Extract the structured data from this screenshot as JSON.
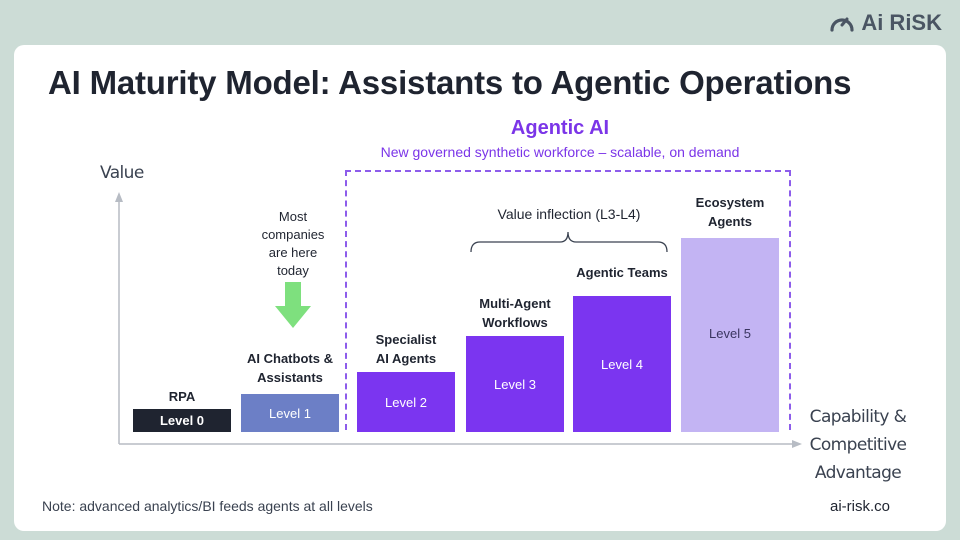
{
  "brand": {
    "logo_text": "Ai RiSK",
    "logo_icon": "gauge-icon"
  },
  "title": "AI Maturity Model: Assistants to Agentic Operations",
  "agentic": {
    "title": "Agentic AI",
    "subtitle": "New governed synthetic workforce – scalable, on demand"
  },
  "axes": {
    "y_label": "Value",
    "x_label_lines": [
      "Capability &",
      "Competitive",
      "Advantage"
    ]
  },
  "annotations": {
    "most_companies": [
      "Most",
      "companies",
      "are here",
      "today"
    ],
    "value_inflection": "Value inflection (L3-L4)"
  },
  "levels": [
    {
      "level": 0,
      "label": "Level 0",
      "name_lines": [
        "RPA"
      ]
    },
    {
      "level": 1,
      "label": "Level 1",
      "name_lines": [
        "AI Chatbots &",
        "Assistants"
      ]
    },
    {
      "level": 2,
      "label": "Level 2",
      "name_lines": [
        "Specialist",
        "AI Agents"
      ]
    },
    {
      "level": 3,
      "label": "Level 3",
      "name_lines": [
        "Multi-Agent",
        "Workflows"
      ]
    },
    {
      "level": 4,
      "label": "Level 4",
      "name_lines": [
        "Agentic Teams"
      ]
    },
    {
      "level": 5,
      "label": "Level 5",
      "name_lines": [
        "Ecosystem",
        "Agents"
      ]
    }
  ],
  "colors": {
    "dark": "#1f2430",
    "level1": "#6c7fc6",
    "agentic_purple": "#7b35f0",
    "level5": "#c3b4f3",
    "arrow_green": "#7ee07e",
    "background": "#ccdcd6"
  },
  "footer": {
    "note": "Note: advanced analytics/BI feeds agents at all levels",
    "site": "ai-risk.co"
  }
}
